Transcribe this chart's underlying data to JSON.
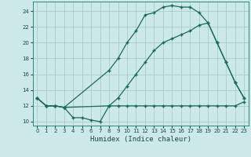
{
  "xlabel": "Humidex (Indice chaleur)",
  "bg_color": "#cce8e8",
  "grid_color": "#aacccc",
  "line_color": "#1a6a5a",
  "xlim": [
    -0.5,
    23.5
  ],
  "ylim": [
    9.5,
    25.2
  ],
  "xticks": [
    0,
    1,
    2,
    3,
    4,
    5,
    6,
    7,
    8,
    9,
    10,
    11,
    12,
    13,
    14,
    15,
    16,
    17,
    18,
    19,
    20,
    21,
    22,
    23
  ],
  "yticks": [
    10,
    12,
    14,
    16,
    18,
    20,
    22,
    24
  ],
  "line1_x": [
    0,
    1,
    2,
    3,
    4,
    5,
    6,
    7,
    8,
    9,
    10,
    11,
    12,
    13,
    14,
    15,
    16,
    17,
    18,
    19,
    20,
    21,
    22,
    23
  ],
  "line1_y": [
    13,
    12,
    12,
    11.8,
    10.5,
    10.5,
    10.2,
    10,
    12,
    12,
    12,
    12,
    12,
    12,
    12,
    12,
    12,
    12,
    12,
    12,
    12,
    12,
    12,
    12.5
  ],
  "line2_x": [
    0,
    1,
    2,
    3,
    8,
    9,
    10,
    11,
    12,
    13,
    14,
    15,
    16,
    17,
    18,
    19,
    20,
    21,
    22,
    23
  ],
  "line2_y": [
    13,
    12,
    12,
    11.8,
    16.5,
    18,
    20,
    21.5,
    23.5,
    23.8,
    24.5,
    24.7,
    24.5,
    24.5,
    23.8,
    22.5,
    20,
    17.5,
    15,
    13
  ],
  "line3_x": [
    0,
    1,
    2,
    3,
    8,
    9,
    10,
    11,
    12,
    13,
    14,
    15,
    16,
    17,
    18,
    19,
    20,
    21,
    22,
    23
  ],
  "line3_y": [
    13,
    12,
    12,
    11.8,
    12,
    13,
    14.5,
    16,
    17.5,
    19,
    20,
    20.5,
    21,
    21.5,
    22.2,
    22.5,
    20,
    17.5,
    15,
    13
  ],
  "marker": "+",
  "markersize": 3,
  "linewidth": 0.9,
  "xlabel_fontsize": 6.5,
  "tick_labelsize": 5.0
}
